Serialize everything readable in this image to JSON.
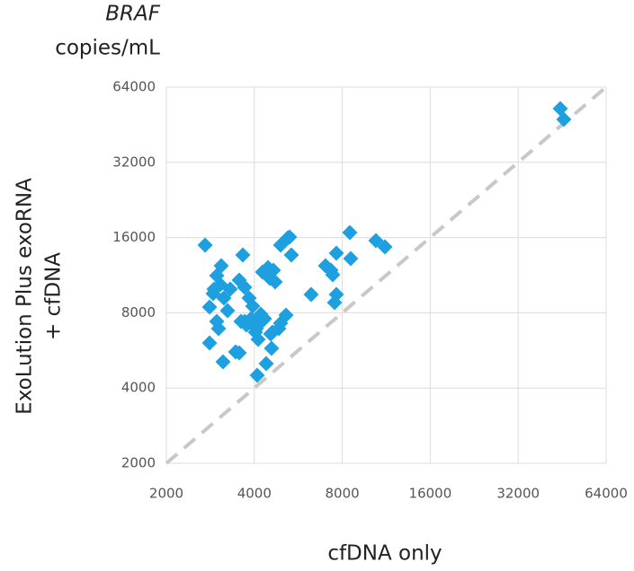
{
  "chart_data": {
    "type": "scatter",
    "y_unit_gene": "BRAF",
    "y_unit": "copies/mL",
    "y_label": [
      "ExoLution Plus exoRNA",
      "+ cfDNA"
    ],
    "x_label": "cfDNA only",
    "xscale": "log",
    "yscale": "log",
    "xlim": [
      2000,
      64000
    ],
    "ylim": [
      2000,
      64000
    ],
    "xticks": [
      2000,
      4000,
      8000,
      16000,
      32000,
      64000
    ],
    "yticks": [
      2000,
      4000,
      8000,
      16000,
      32000,
      64000
    ],
    "grid": true,
    "diagonal": true,
    "color": "#1ea0e0",
    "x": [
      2714,
      2975,
      3082,
      2912,
      2892,
      3060,
      3147,
      2811,
      2975,
      3017,
      2811,
      3126,
      3308,
      3238,
      3653,
      3551,
      3706,
      3451,
      3551,
      3759,
      3839,
      3894,
      3706,
      3950,
      3602,
      4034,
      4121,
      4210,
      4062,
      4239,
      4332,
      4092,
      4269,
      4519,
      4455,
      4649,
      4714,
      4392,
      4582,
      4551,
      4616,
      4850,
      4920,
      5133,
      4920,
      5206,
      5282,
      5356,
      6260,
      7012,
      7316,
      7422,
      7636,
      7528,
      7636,
      8490,
      8550,
      10428,
      11196,
      44600,
      45860
    ],
    "values": [
      14930,
      11268,
      12340,
      9952,
      9550,
      10374,
      9162,
      8434,
      7388,
      6916,
      6058,
      5092,
      9952,
      8160,
      13628,
      10810,
      10118,
      5578,
      5532,
      7150,
      9162,
      7574,
      7388,
      8504,
      7388,
      6690,
      6262,
      7894,
      6916,
      7388,
      7574,
      4498,
      11646,
      10992,
      12138,
      11842,
      10636,
      5010,
      5766,
      6582,
      6690,
      6916,
      7270,
      7830,
      14930,
      15940,
      16080,
      13628,
      9470,
      12340,
      11842,
      11360,
      13854,
      8792,
      9470,
      16760,
      13188,
      15560,
      14686,
      52480,
      47520
    ]
  }
}
